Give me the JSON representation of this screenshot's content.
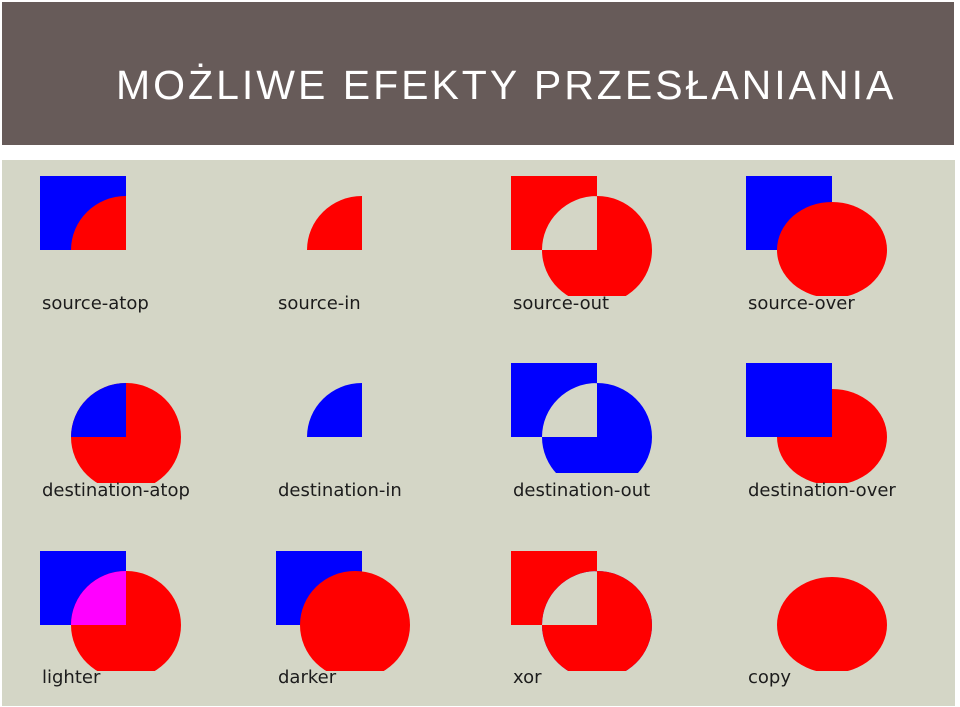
{
  "slide": {
    "title": "MOŻLIWE EFEKTY PRZESŁANIANIA"
  },
  "colors": {
    "header_bg": "#675b59",
    "panel_bg": "#d4d6c6",
    "destination": "#0000ff",
    "source": "#ff0000",
    "lighter_overlap": "#ff00ff"
  },
  "modes": [
    {
      "label": "source-atop"
    },
    {
      "label": "source-in"
    },
    {
      "label": "source-out"
    },
    {
      "label": "source-over"
    },
    {
      "label": "destination-atop"
    },
    {
      "label": "destination-in"
    },
    {
      "label": "destination-out"
    },
    {
      "label": "destination-over"
    },
    {
      "label": "lighter"
    },
    {
      "label": "darker"
    },
    {
      "label": "xor"
    },
    {
      "label": "copy"
    }
  ]
}
